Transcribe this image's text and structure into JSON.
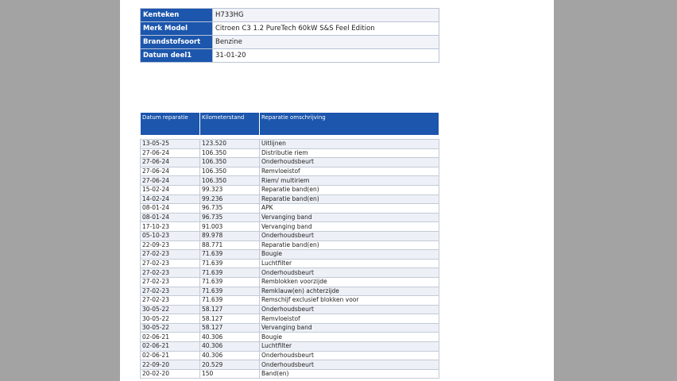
{
  "vehicle": [
    {
      "label": "Kenteken",
      "value": "H733HG"
    },
    {
      "label": "Merk Model",
      "value": "Citroen C3 1.2 PureTech 60kW S&S Feel Edition"
    },
    {
      "label": "Brandstofsoort",
      "value": "Benzine"
    },
    {
      "label": "Datum deel1",
      "value": "31-01-20"
    }
  ],
  "repairs": {
    "headers": {
      "date": "Datum reparatie",
      "km": "Kilometerstand",
      "description": "Reparatie omschrijving"
    },
    "rows": [
      {
        "date": "13-05-25",
        "km": "123.520",
        "description": "Uitlijnen"
      },
      {
        "date": "27-06-24",
        "km": "106.350",
        "description": "Distributie riem"
      },
      {
        "date": "27-06-24",
        "km": "106.350",
        "description": "Onderhoudsbeurt"
      },
      {
        "date": "27-06-24",
        "km": "106.350",
        "description": "Remvloeistof"
      },
      {
        "date": "27-06-24",
        "km": "106.350",
        "description": "Riem/ multiriem"
      },
      {
        "date": "15-02-24",
        "km": "99.323",
        "description": "Reparatie band(en)"
      },
      {
        "date": "14-02-24",
        "km": "99.236",
        "description": "Reparatie band(en)"
      },
      {
        "date": "08-01-24",
        "km": "96.735",
        "description": "APK"
      },
      {
        "date": "08-01-24",
        "km": "96.735",
        "description": "Vervanging band"
      },
      {
        "date": "17-10-23",
        "km": "91.003",
        "description": "Vervanging band"
      },
      {
        "date": "05-10-23",
        "km": "89.978",
        "description": "Onderhoudsbeurt"
      },
      {
        "date": "22-09-23",
        "km": "88.771",
        "description": "Reparatie band(en)"
      },
      {
        "date": "27-02-23",
        "km": "71.639",
        "description": "Bougie"
      },
      {
        "date": "27-02-23",
        "km": "71.639",
        "description": "Luchtfilter"
      },
      {
        "date": "27-02-23",
        "km": "71.639",
        "description": "Onderhoudsbeurt"
      },
      {
        "date": "27-02-23",
        "km": "71.639",
        "description": "Remblokken voorzijde"
      },
      {
        "date": "27-02-23",
        "km": "71.639",
        "description": "Remklauw(en) achterzijde"
      },
      {
        "date": "27-02-23",
        "km": "71.639",
        "description": "Remschijf exclusief blokken voor"
      },
      {
        "date": "30-05-22",
        "km": "58.127",
        "description": "Onderhoudsbeurt"
      },
      {
        "date": "30-05-22",
        "km": "58.127",
        "description": "Remvloeistof"
      },
      {
        "date": "30-05-22",
        "km": "58.127",
        "description": "Vervanging band"
      },
      {
        "date": "02-06-21",
        "km": "40.306",
        "description": "Bougie"
      },
      {
        "date": "02-06-21",
        "km": "40.306",
        "description": "Luchtfilter"
      },
      {
        "date": "02-06-21",
        "km": "40.306",
        "description": "Onderhoudsbeurt"
      },
      {
        "date": "22-09-20",
        "km": "20.529",
        "description": "Onderhoudsbeurt"
      },
      {
        "date": "20-02-20",
        "km": "150",
        "description": "Band(en)"
      }
    ]
  }
}
